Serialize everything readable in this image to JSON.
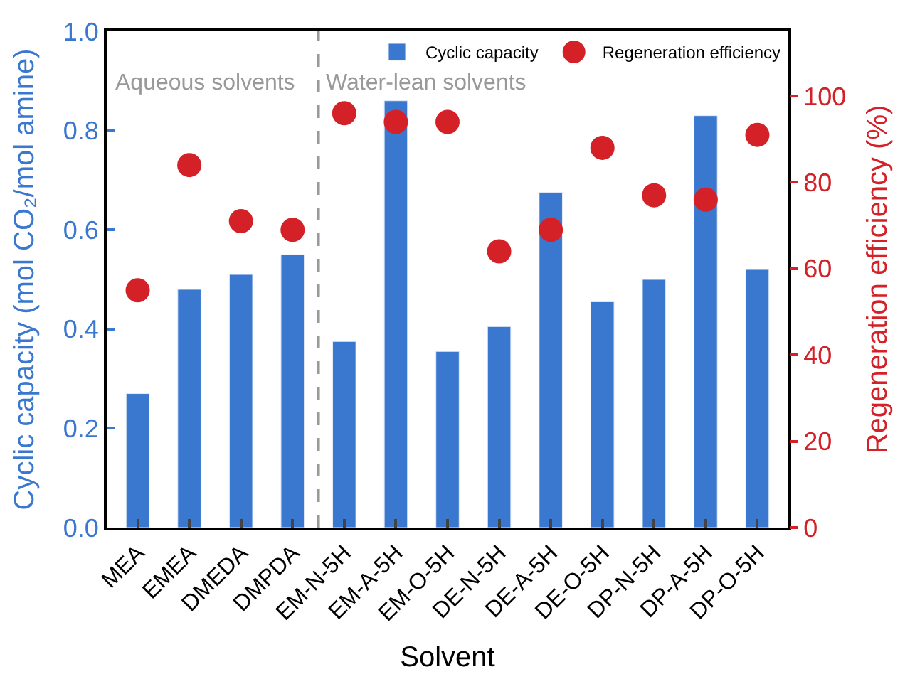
{
  "chart_data": {
    "type": "bar",
    "xlabel": "Solvent",
    "ylabel": "Cyclic capacity (mol CO₂/mol amine)",
    "y2label": "Regeneration efficiency (%)",
    "categories": [
      "MEA",
      "EMEA",
      "DMEDA",
      "DMPDA",
      "EM-N-5H",
      "EM-A-5H",
      "EM-O-5H",
      "DE-N-5H",
      "DE-A-5H",
      "DE-O-5H",
      "DP-N-5H",
      "DP-A-5H",
      "DP-O-5H"
    ],
    "series": [
      {
        "name": "Cyclic capacity",
        "color": "#3a78d0",
        "values": [
          0.27,
          0.48,
          0.51,
          0.55,
          0.375,
          0.86,
          0.355,
          0.405,
          0.675,
          0.455,
          0.5,
          0.83,
          0.52
        ]
      },
      {
        "name": "Regeneration efficiency",
        "type": "scatter",
        "axis": "y2",
        "marker": "circle",
        "color": "#d42027",
        "values": [
          55,
          84,
          71,
          69,
          96,
          94,
          94,
          64,
          69,
          88,
          77,
          76,
          91
        ]
      }
    ],
    "ylim": [
      0,
      1.0
    ],
    "yticks": [
      {
        "value": 0,
        "label": "0.0"
      },
      0.2,
      0.4,
      0.6,
      0.8,
      {
        "value": 1.0,
        "label": "1.0"
      }
    ],
    "y2lim": [
      0,
      115
    ],
    "y2ticks": [
      0,
      20,
      40,
      60,
      80,
      100
    ],
    "annotations": [
      "Aqueous solvents",
      "Water-lean solvents"
    ],
    "legend": "top right"
  }
}
